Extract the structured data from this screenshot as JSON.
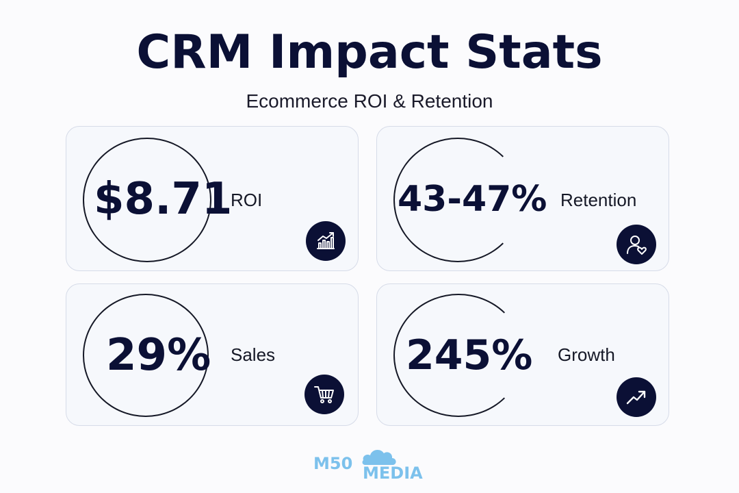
{
  "header": {
    "title": "CRM Impact Stats",
    "subtitle": "Ecommerce ROI & Retention"
  },
  "cards": [
    {
      "value": "$8.71",
      "label": "ROI",
      "icon": "chart-bars-trend-icon"
    },
    {
      "value": "43-47%",
      "label": "Retention",
      "icon": "user-heart-icon"
    },
    {
      "value": "29%",
      "label": "Sales",
      "icon": "shopping-cart-icon"
    },
    {
      "value": "245%",
      "label": "Growth",
      "icon": "trend-up-arrow-icon"
    }
  ],
  "logo": {
    "line1": "M50",
    "line2": "MEDIA",
    "icon": "cloud-icon"
  },
  "colors": {
    "primary": "#0b1035",
    "card_bg": "#f6f8fc",
    "card_border": "#d6dbe8",
    "logo_blue": "#7cc1ec"
  }
}
